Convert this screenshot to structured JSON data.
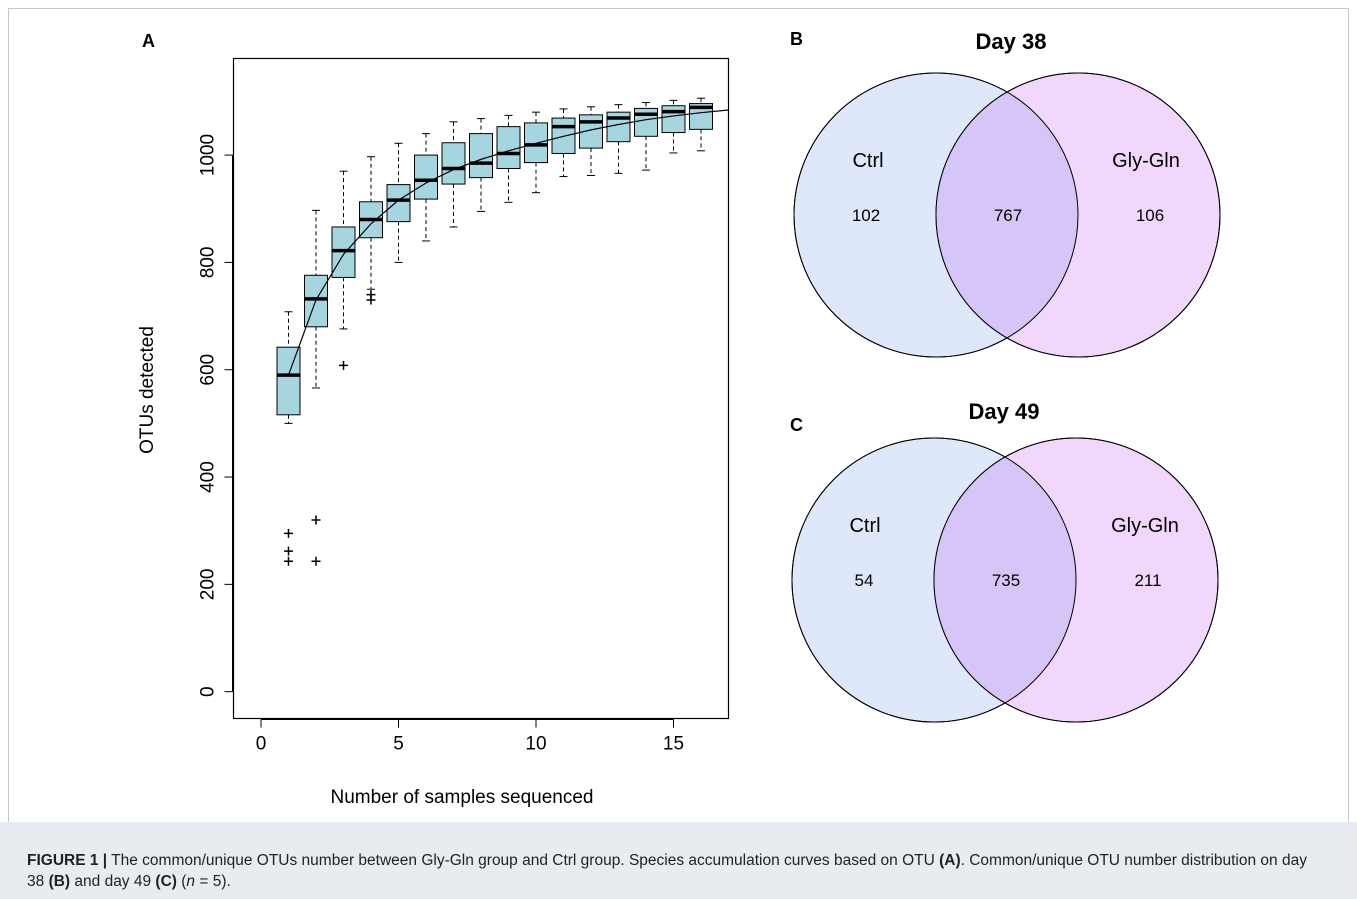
{
  "panel_labels": {
    "a": "A",
    "b": "B",
    "c": "C"
  },
  "chart_data": [
    {
      "type": "box",
      "panel": "A",
      "xlabel": "Number of samples sequenced",
      "ylabel": "OTUs detected",
      "xlim": [
        -1,
        17
      ],
      "ylim": [
        -50,
        1180
      ],
      "xticks": [
        0,
        5,
        10,
        15
      ],
      "yticks": [
        0,
        200,
        400,
        600,
        800,
        1000
      ],
      "box_color": "#a5d6e0",
      "boxes": [
        {
          "x": 1,
          "whisker_low": 500,
          "q1": 516,
          "median": 590,
          "q3": 642,
          "whisker_high": 708,
          "outliers": [
            295,
            262,
            243
          ]
        },
        {
          "x": 2,
          "whisker_low": 566,
          "q1": 680,
          "median": 732,
          "q3": 776,
          "whisker_high": 897,
          "outliers": [
            320,
            243
          ]
        },
        {
          "x": 3,
          "whisker_low": 676,
          "q1": 772,
          "median": 822,
          "q3": 866,
          "whisker_high": 970,
          "outliers": [
            608
          ]
        },
        {
          "x": 4,
          "whisker_low": 750,
          "q1": 846,
          "median": 880,
          "q3": 913,
          "whisker_high": 997,
          "outliers": [
            740,
            730
          ]
        },
        {
          "x": 5,
          "whisker_low": 800,
          "q1": 876,
          "median": 916,
          "q3": 945,
          "whisker_high": 1022,
          "outliers": []
        },
        {
          "x": 6,
          "whisker_low": 840,
          "q1": 918,
          "median": 953,
          "q3": 1000,
          "whisker_high": 1040,
          "outliers": []
        },
        {
          "x": 7,
          "whisker_low": 866,
          "q1": 946,
          "median": 975,
          "q3": 1023,
          "whisker_high": 1062,
          "outliers": []
        },
        {
          "x": 8,
          "whisker_low": 895,
          "q1": 958,
          "median": 985,
          "q3": 1040,
          "whisker_high": 1068,
          "outliers": []
        },
        {
          "x": 9,
          "whisker_low": 912,
          "q1": 975,
          "median": 1003,
          "q3": 1053,
          "whisker_high": 1074,
          "outliers": []
        },
        {
          "x": 10,
          "whisker_low": 930,
          "q1": 986,
          "median": 1019,
          "q3": 1060,
          "whisker_high": 1080,
          "outliers": []
        },
        {
          "x": 11,
          "whisker_low": 960,
          "q1": 1003,
          "median": 1053,
          "q3": 1069,
          "whisker_high": 1086,
          "outliers": []
        },
        {
          "x": 12,
          "whisker_low": 962,
          "q1": 1013,
          "median": 1062,
          "q3": 1075,
          "whisker_high": 1090,
          "outliers": []
        },
        {
          "x": 13,
          "whisker_low": 966,
          "q1": 1025,
          "median": 1069,
          "q3": 1080,
          "whisker_high": 1094,
          "outliers": []
        },
        {
          "x": 14,
          "whisker_low": 972,
          "q1": 1035,
          "median": 1076,
          "q3": 1087,
          "whisker_high": 1098,
          "outliers": []
        },
        {
          "x": 15,
          "whisker_low": 1004,
          "q1": 1042,
          "median": 1081,
          "q3": 1092,
          "whisker_high": 1102,
          "outliers": []
        },
        {
          "x": 16,
          "whisker_low": 1008,
          "q1": 1048,
          "median": 1089,
          "q3": 1096,
          "whisker_high": 1106,
          "outliers": []
        }
      ],
      "curve": {
        "x": [
          1,
          2,
          3,
          4,
          5,
          6,
          7,
          8,
          9,
          10,
          11,
          12,
          13,
          14,
          15,
          16,
          17
        ],
        "y": [
          590,
          730,
          815,
          872,
          916,
          948,
          973,
          992,
          1008,
          1022,
          1035,
          1047,
          1057,
          1066,
          1073,
          1079,
          1084
        ]
      }
    },
    {
      "type": "venn",
      "panel": "B",
      "title": "Day 38",
      "sets": [
        {
          "name": "Ctrl",
          "unique": "102",
          "color": "#dfe8fb"
        },
        {
          "name": "Gly-Gln",
          "unique": "106",
          "color": "#f0d7fb"
        }
      ],
      "overlap": "767",
      "overlap_color": "#d6c6f7"
    },
    {
      "type": "venn",
      "panel": "C",
      "title": "Day 49",
      "sets": [
        {
          "name": "Ctrl",
          "unique": "54",
          "color": "#dfe8fb"
        },
        {
          "name": "Gly-Gln",
          "unique": "211",
          "color": "#f0d7fb"
        }
      ],
      "overlap": "735",
      "overlap_color": "#d6c6f7"
    }
  ],
  "caption": {
    "lead": "FIGURE 1 |",
    "s1": " The common/unique OTUs number between Gly-Gln group and Ctrl group. Species accumulation curves based on OTU ",
    "ref_a": "(A)",
    "s2": ". Common/unique OTU number distribution on day 38 ",
    "ref_b": "(B)",
    "s3": " and day 49 ",
    "ref_c": "(C)",
    "s4": " (",
    "n_var": "n",
    "s5": " = 5)."
  }
}
